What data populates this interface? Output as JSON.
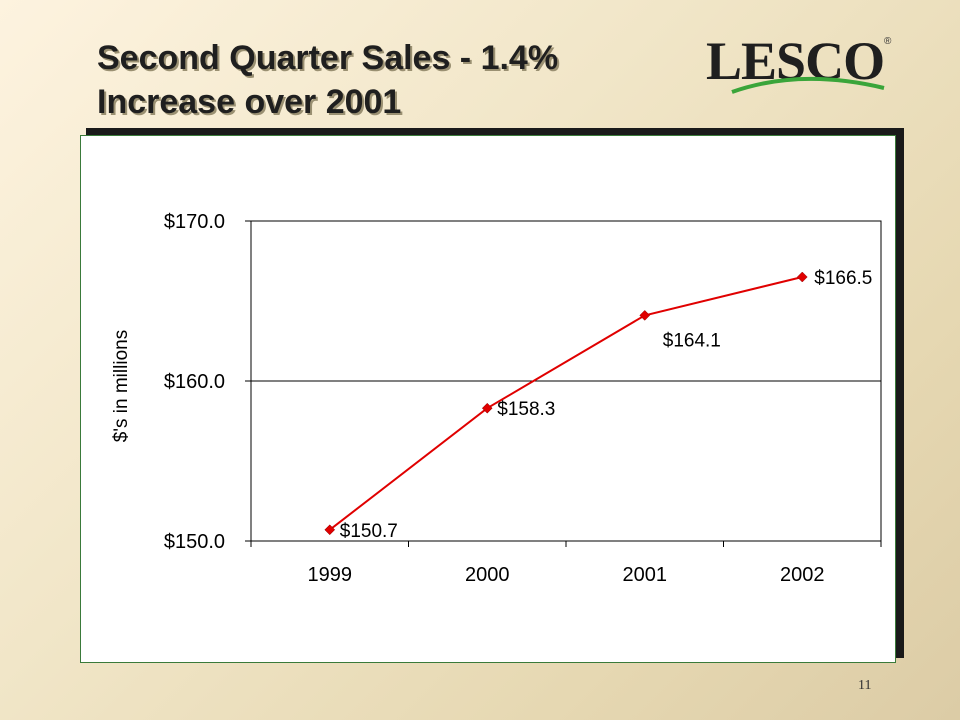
{
  "slide": {
    "title_line1": "Second Quarter Sales - 1.4%",
    "title_line2": "Increase over 2001",
    "logo_text": "LESCO",
    "logo_mark": "®",
    "page_number": "11"
  },
  "colors": {
    "series": "#e00000",
    "panel_border": "#3a7a3a",
    "logo_swoosh": "#3aa53a"
  },
  "chart_data": {
    "type": "line",
    "title": "",
    "xlabel": "",
    "ylabel": "$'s in millions",
    "categories": [
      "1999",
      "2000",
      "2001",
      "2002"
    ],
    "series": [
      {
        "values": [
          150.7,
          158.3,
          164.1,
          166.5
        ],
        "data_labels": [
          "$150.7",
          "$158.3",
          "$164.1",
          "$166.5"
        ]
      }
    ],
    "ylim": [
      150,
      170
    ],
    "yticks": [
      150,
      160,
      170
    ],
    "ytick_labels": [
      "$150.0",
      "$160.0",
      "$170.0"
    ],
    "grid": "horizontal major gridlines",
    "legend": "none",
    "marker": "diamond"
  }
}
